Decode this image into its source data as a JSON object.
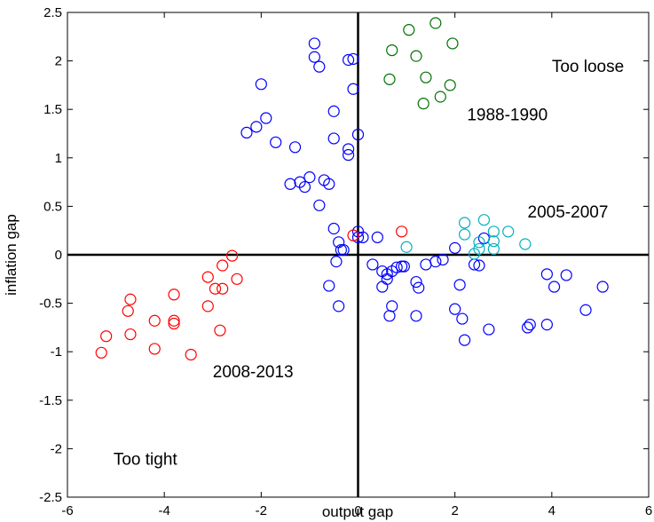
{
  "chart_data": {
    "type": "scatter",
    "xlabel": "output gap",
    "ylabel": "inflation gap",
    "xlim": [
      -6,
      6
    ],
    "ylim": [
      -2.5,
      2.5
    ],
    "xticks": [
      "-6",
      "-4",
      "-2",
      "0",
      "2",
      "4",
      "6"
    ],
    "yticks": [
      "-2.5",
      "-2",
      "-1.5",
      "-1",
      "-0.5",
      "0",
      "0.5",
      "1",
      "1.5",
      "2",
      "2.5"
    ],
    "grid": false,
    "marker": "open-circle",
    "annotations": [
      {
        "text": "Too loose",
        "x": 4.0,
        "y": 1.95
      },
      {
        "text": "1988-1990",
        "x": 2.25,
        "y": 1.45
      },
      {
        "text": "2005-2007",
        "x": 3.5,
        "y": 0.45
      },
      {
        "text": "2008-2013",
        "x": -3.0,
        "y": -1.2
      },
      {
        "text": "Too tight",
        "x": -5.05,
        "y": -2.1
      }
    ],
    "series": [
      {
        "color": "#0000ff",
        "points": [
          [
            -0.9,
            2.18
          ],
          [
            -0.9,
            2.04
          ],
          [
            -0.8,
            1.94
          ],
          [
            -0.2,
            2.01
          ],
          [
            -0.1,
            2.02
          ],
          [
            -2.0,
            1.76
          ],
          [
            -0.1,
            1.71
          ],
          [
            -0.5,
            1.48
          ],
          [
            -1.9,
            1.41
          ],
          [
            -2.1,
            1.32
          ],
          [
            -2.3,
            1.26
          ],
          [
            0.0,
            1.24
          ],
          [
            -0.5,
            1.2
          ],
          [
            -1.7,
            1.16
          ],
          [
            -1.3,
            1.11
          ],
          [
            -0.2,
            1.09
          ],
          [
            -0.2,
            1.03
          ],
          [
            -0.7,
            0.77
          ],
          [
            -0.6,
            0.73
          ],
          [
            -1.0,
            0.8
          ],
          [
            -1.2,
            0.75
          ],
          [
            -1.4,
            0.73
          ],
          [
            -1.1,
            0.7
          ],
          [
            -0.8,
            0.51
          ],
          [
            -0.5,
            0.27
          ],
          [
            0.0,
            0.24
          ],
          [
            0.0,
            0.18
          ],
          [
            0.1,
            0.18
          ],
          [
            0.4,
            0.18
          ],
          [
            -0.4,
            0.13
          ],
          [
            -0.35,
            0.05
          ],
          [
            -0.3,
            0.05
          ],
          [
            -0.45,
            -0.07
          ],
          [
            0.3,
            -0.1
          ],
          [
            -0.6,
            -0.32
          ],
          [
            -0.4,
            -0.53
          ],
          [
            0.5,
            -0.17
          ],
          [
            0.6,
            -0.2
          ],
          [
            0.7,
            -0.17
          ],
          [
            0.8,
            -0.13
          ],
          [
            0.9,
            -0.12
          ],
          [
            0.95,
            -0.12
          ],
          [
            0.6,
            -0.25
          ],
          [
            0.5,
            -0.33
          ],
          [
            1.2,
            -0.28
          ],
          [
            1.25,
            -0.34
          ],
          [
            0.7,
            -0.53
          ],
          [
            0.65,
            -0.63
          ],
          [
            1.2,
            -0.63
          ],
          [
            1.4,
            -0.1
          ],
          [
            1.6,
            -0.07
          ],
          [
            1.75,
            -0.05
          ],
          [
            2.0,
            0.07
          ],
          [
            2.1,
            -0.31
          ],
          [
            2.0,
            -0.56
          ],
          [
            2.15,
            -0.66
          ],
          [
            2.2,
            -0.88
          ],
          [
            2.4,
            -0.1
          ],
          [
            2.5,
            -0.11
          ],
          [
            2.6,
            0.17
          ],
          [
            2.7,
            -0.77
          ],
          [
            3.5,
            -0.75
          ],
          [
            3.55,
            -0.72
          ],
          [
            3.9,
            -0.72
          ],
          [
            3.9,
            -0.2
          ],
          [
            4.05,
            -0.33
          ],
          [
            4.3,
            -0.21
          ],
          [
            4.7,
            -0.57
          ],
          [
            5.05,
            -0.33
          ]
        ]
      },
      {
        "color": "#007000",
        "points": [
          [
            1.05,
            2.32
          ],
          [
            1.6,
            2.39
          ],
          [
            1.95,
            2.18
          ],
          [
            0.7,
            2.11
          ],
          [
            1.2,
            2.05
          ],
          [
            0.65,
            1.81
          ],
          [
            1.4,
            1.83
          ],
          [
            1.9,
            1.75
          ],
          [
            1.7,
            1.63
          ],
          [
            1.35,
            1.56
          ]
        ]
      },
      {
        "color": "#00b0c0",
        "points": [
          [
            2.2,
            0.33
          ],
          [
            2.6,
            0.36
          ],
          [
            2.8,
            0.24
          ],
          [
            3.1,
            0.24
          ],
          [
            2.2,
            0.21
          ],
          [
            2.5,
            0.13
          ],
          [
            2.8,
            0.14
          ],
          [
            3.45,
            0.11
          ],
          [
            2.5,
            0.06
          ],
          [
            2.8,
            0.06
          ],
          [
            2.4,
            0.01
          ],
          [
            1.0,
            0.08
          ]
        ]
      },
      {
        "color": "#ff0000",
        "points": [
          [
            -0.1,
            0.2
          ],
          [
            0.9,
            0.24
          ],
          [
            -2.6,
            -0.01
          ],
          [
            -2.8,
            -0.11
          ],
          [
            -3.1,
            -0.23
          ],
          [
            -2.5,
            -0.25
          ],
          [
            -2.95,
            -0.35
          ],
          [
            -2.8,
            -0.35
          ],
          [
            -3.1,
            -0.53
          ],
          [
            -3.8,
            -0.41
          ],
          [
            -4.7,
            -0.46
          ],
          [
            -4.75,
            -0.58
          ],
          [
            -4.2,
            -0.68
          ],
          [
            -3.8,
            -0.68
          ],
          [
            -3.8,
            -0.71
          ],
          [
            -2.85,
            -0.78
          ],
          [
            -4.7,
            -0.82
          ],
          [
            -5.2,
            -0.84
          ],
          [
            -4.2,
            -0.97
          ],
          [
            -5.3,
            -1.01
          ],
          [
            -3.45,
            -1.03
          ]
        ]
      }
    ]
  }
}
